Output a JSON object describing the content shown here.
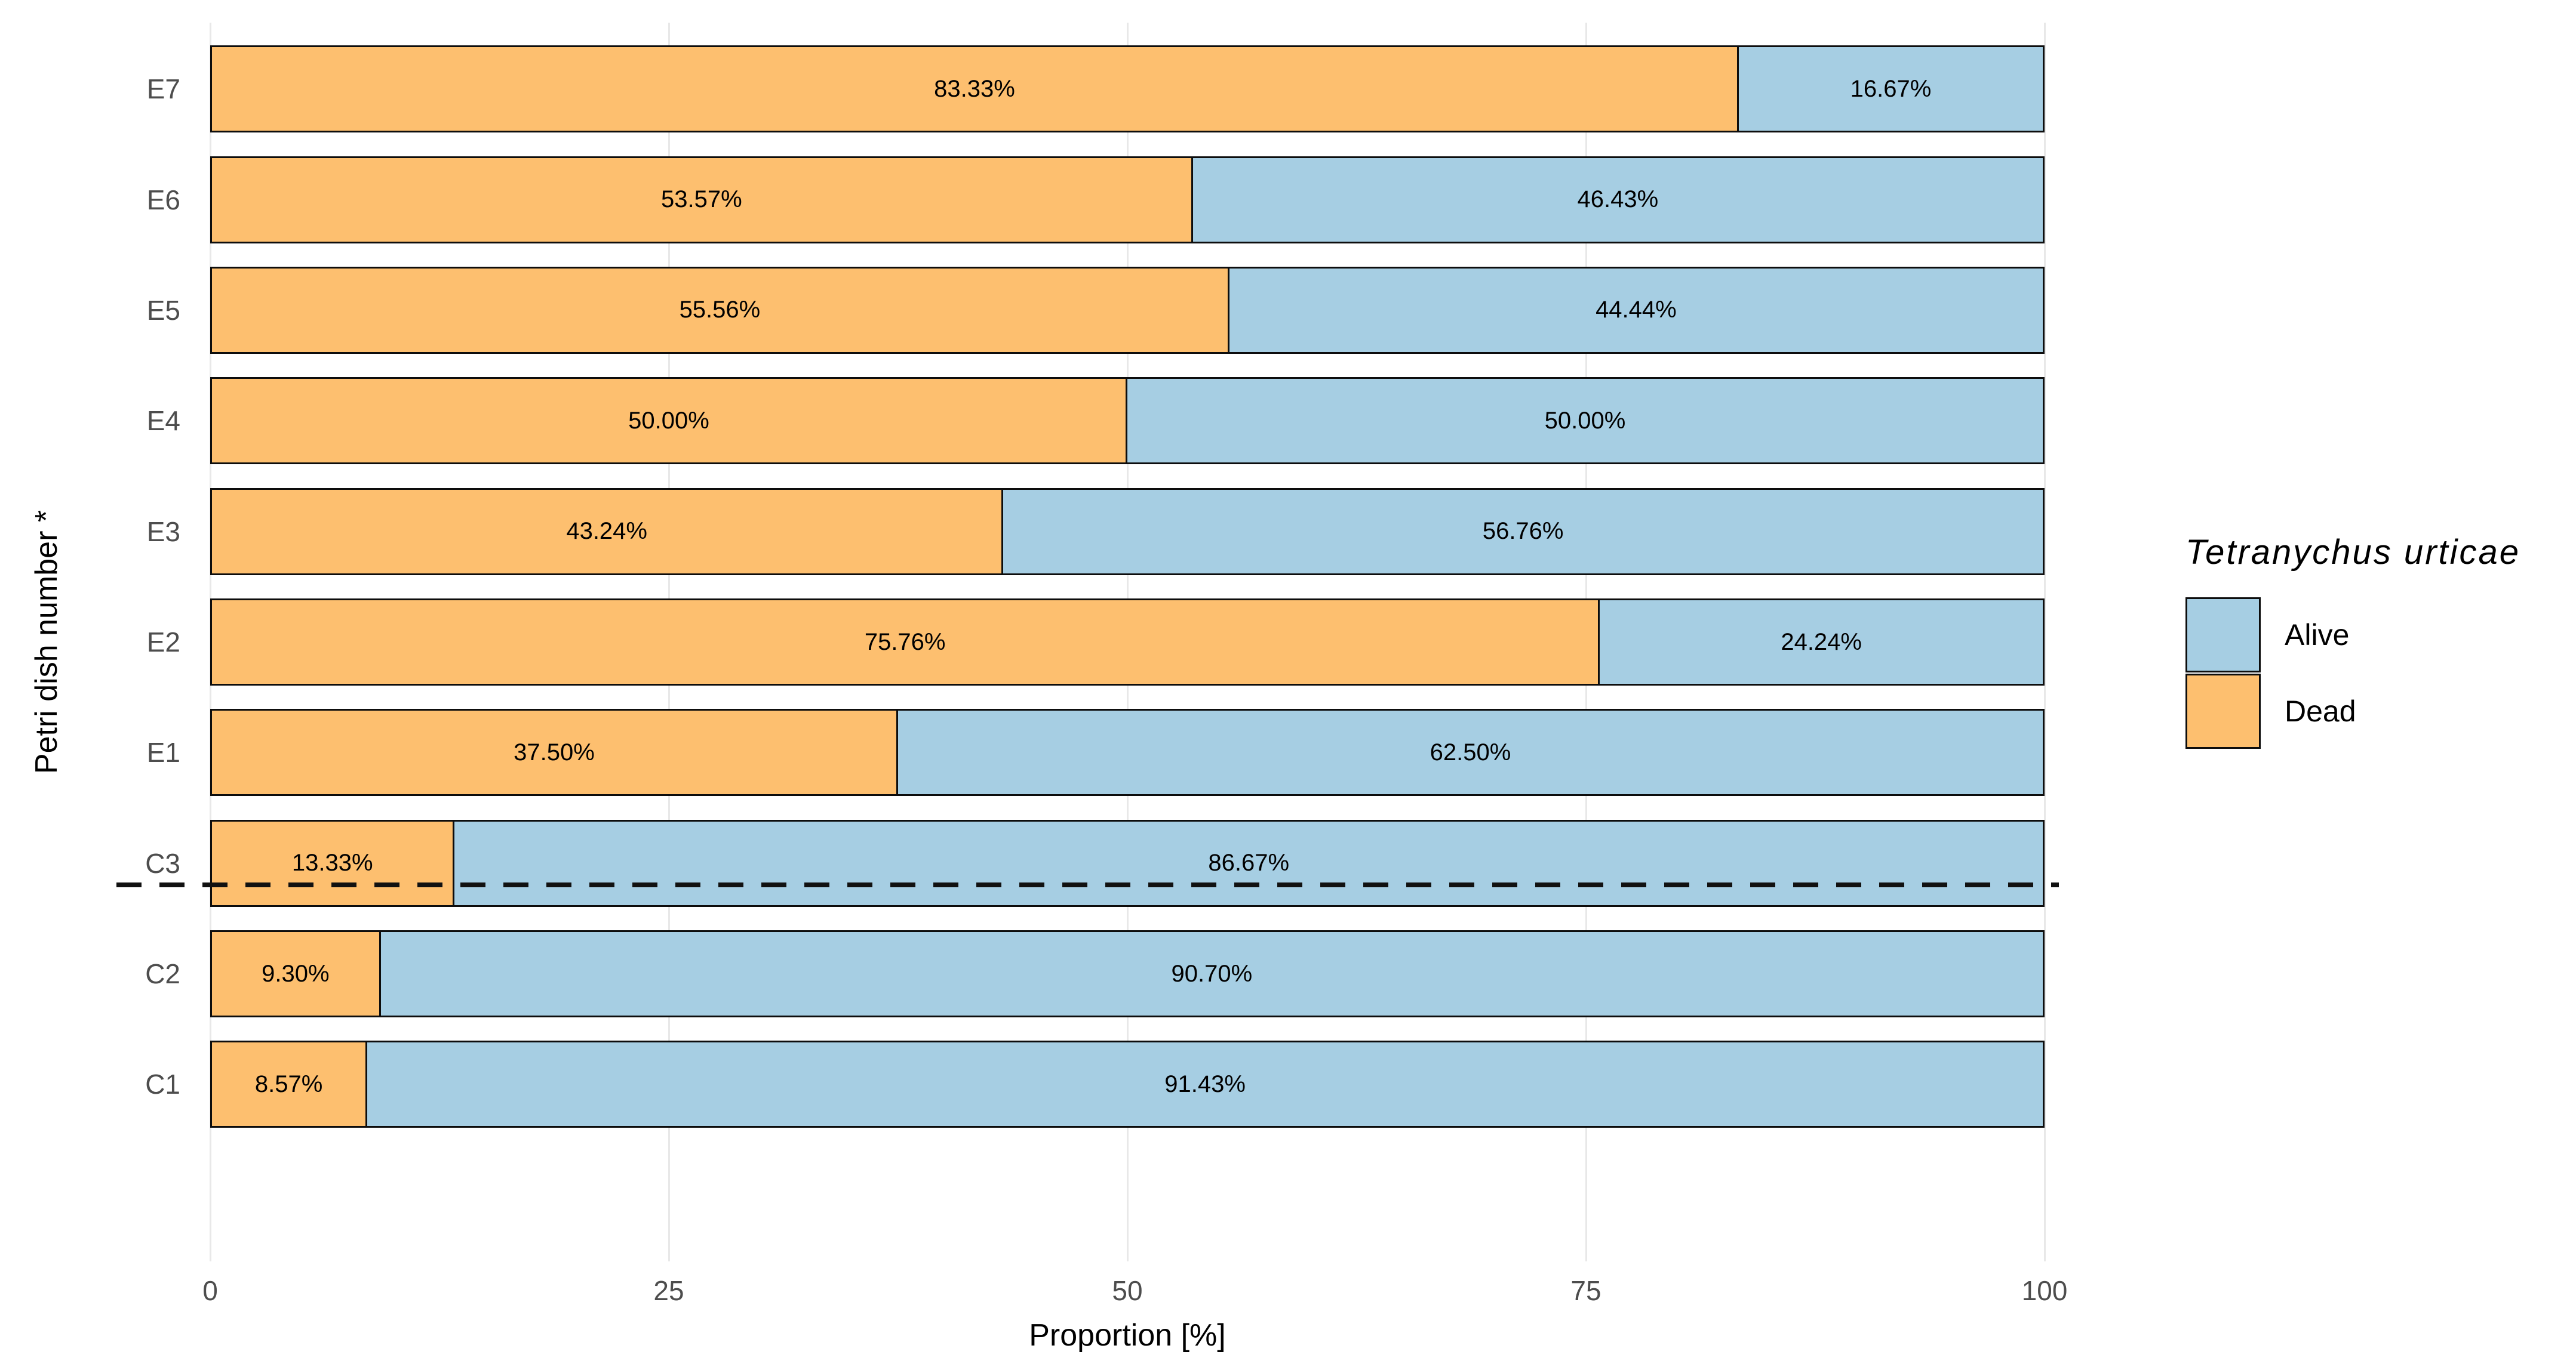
{
  "chart_data": {
    "type": "bar",
    "orientation": "horizontal",
    "stacking": "fill",
    "title": "",
    "categories": [
      "E7",
      "E6",
      "E5",
      "E4",
      "E3",
      "E2",
      "E1",
      "C3",
      "C2",
      "C1"
    ],
    "series": [
      {
        "name": "Dead",
        "color": "#FDBF6F",
        "values": [
          83.33,
          53.57,
          55.56,
          50.0,
          43.24,
          75.76,
          37.5,
          13.33,
          9.3,
          8.57
        ],
        "labels": [
          "83.33%",
          "53.57%",
          "55.56%",
          "50.00%",
          "43.24%",
          "75.76%",
          "37.50%",
          "13.33%",
          "9.30%",
          "8.57%"
        ]
      },
      {
        "name": "Alive",
        "color": "#A6CEE3",
        "values": [
          16.67,
          46.43,
          44.44,
          50.0,
          56.76,
          24.24,
          62.5,
          86.67,
          90.7,
          91.43
        ],
        "labels": [
          "16.67%",
          "46.43%",
          "44.44%",
          "50.00%",
          "56.76%",
          "24.24%",
          "62.50%",
          "86.67%",
          "90.70%",
          "91.43%"
        ]
      }
    ],
    "xlabel": "Proportion [%]",
    "ylabel": "Petri dish number *",
    "xlim": [
      0,
      100
    ],
    "x_ticks": [
      "0",
      "25",
      "50",
      "75",
      "100"
    ],
    "x_tick_values": [
      0,
      25,
      50,
      75,
      100
    ],
    "grid": "major-vertical-only",
    "separator": {
      "after_category": "E1",
      "style": "dashed",
      "color": "#111111"
    },
    "legend": {
      "title": "Tetranychus urticae",
      "position": "right",
      "items": [
        {
          "label": "Alive",
          "color": "#A6CEE3"
        },
        {
          "label": "Dead",
          "color": "#FDBF6F"
        }
      ]
    },
    "colors": {
      "bar_border": "#0d0d0d",
      "grid": "#e8e8e8",
      "axis_text": "#4d4d4d",
      "title_text": "#000000",
      "background": "#ffffff"
    }
  }
}
